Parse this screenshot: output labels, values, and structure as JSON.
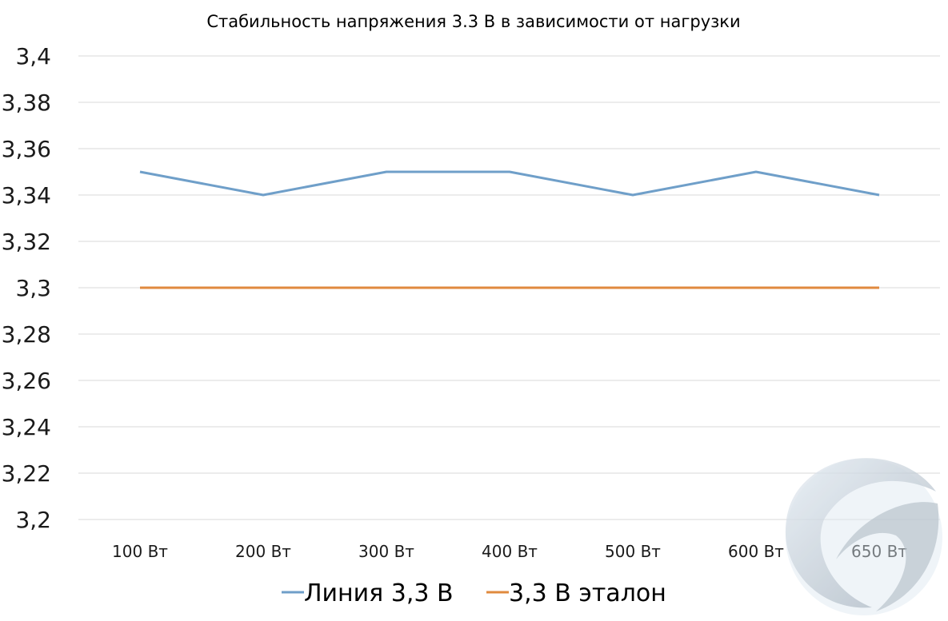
{
  "chart_data": {
    "type": "line",
    "title": "Стабильность напряжения 3.3 В в зависимости от нагрузки",
    "xlabel": "",
    "ylabel": "",
    "categories": [
      "100 Вт",
      "200 Вт",
      "300 Вт",
      "400 Вт",
      "500 Вт",
      "600 Вт",
      "650 Вт"
    ],
    "series": [
      {
        "name": "Линия 3,3 В",
        "values": [
          3.35,
          3.34,
          3.35,
          3.35,
          3.34,
          3.35,
          3.34
        ],
        "color": "#6f9fc9"
      },
      {
        "name": "3,3 В эталон",
        "values": [
          3.3,
          3.3,
          3.3,
          3.3,
          3.3,
          3.3,
          3.3
        ],
        "color": "#e08a3e"
      }
    ],
    "ylim": [
      3.2,
      3.4
    ],
    "yticks": [
      "3,4",
      "3,38",
      "3,36",
      "3,34",
      "3,32",
      "3,3",
      "3,28",
      "3,26",
      "3,24",
      "3,22",
      "3,2"
    ],
    "grid": true,
    "legend_position": "bottom",
    "watermark": "logo-watermark"
  }
}
